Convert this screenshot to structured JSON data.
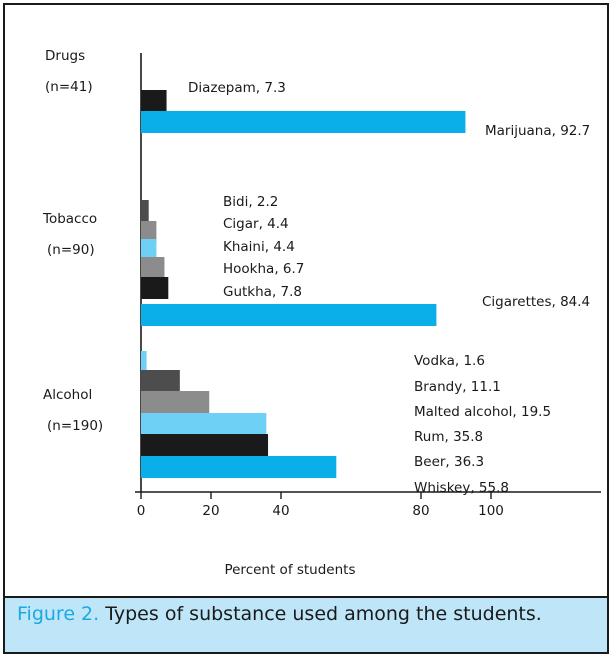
{
  "chart_data": {
    "type": "bar",
    "orientation": "horizontal",
    "xlabel": "Percent of students",
    "ylabel": "",
    "xlim": [
      0,
      112
    ],
    "x_ticks": [
      0,
      20,
      40,
      80,
      100
    ],
    "groups": [
      {
        "name": "Drugs",
        "n_label": "(n=41)",
        "bars": [
          {
            "label": "Diazepam, 7.3",
            "category": "Diazepam",
            "value": 7.3,
            "color": "#1a1a1a"
          },
          {
            "label": "Marijuana, 92.7",
            "category": "Marijuana",
            "value": 92.7,
            "color": "#0aaee8"
          }
        ]
      },
      {
        "name": "Tobacco",
        "n_label": "(n=90)",
        "bars": [
          {
            "label": "Bidi, 2.2",
            "category": "Bidi",
            "value": 2.2,
            "color": "#4d4d4d"
          },
          {
            "label": "Cigar, 4.4",
            "category": "Cigar",
            "value": 4.4,
            "color": "#8c8c8c"
          },
          {
            "label": "Khaini, 4.4",
            "category": "Khaini",
            "value": 4.4,
            "color": "#6ed0f5"
          },
          {
            "label": "Hookha, 6.7",
            "category": "Hookha",
            "value": 6.7,
            "color": "#8c8c8c"
          },
          {
            "label": "Gutkha, 7.8",
            "category": "Gutkha",
            "value": 7.8,
            "color": "#1a1a1a"
          },
          {
            "label": "Cigarettes, 84.4",
            "category": "Cigarettes",
            "value": 84.4,
            "color": "#0aaee8"
          }
        ]
      },
      {
        "name": "Alcohol",
        "n_label": "(n=190)",
        "bars": [
          {
            "label": "Vodka, 1.6",
            "category": "Vodka",
            "value": 1.6,
            "color": "#6ed0f5"
          },
          {
            "label": "Brandy, 11.1",
            "category": "Brandy",
            "value": 11.1,
            "color": "#4d4d4d"
          },
          {
            "label": "Malted alcohol, 19.5",
            "category": "Malted alcohol",
            "value": 19.5,
            "color": "#8c8c8c"
          },
          {
            "label": "Rum, 35.8",
            "category": "Rum",
            "value": 35.8,
            "color": "#6ed0f5"
          },
          {
            "label": "Beer, 36.3",
            "category": "Beer",
            "value": 36.3,
            "color": "#1a1a1a"
          },
          {
            "label": "Whiskey, 55.8",
            "category": "Whiskey",
            "value": 55.8,
            "color": "#0aaee8"
          }
        ]
      }
    ]
  },
  "caption": {
    "figure_label": "Figure 2.",
    "text": "Types of substance used among the students."
  }
}
